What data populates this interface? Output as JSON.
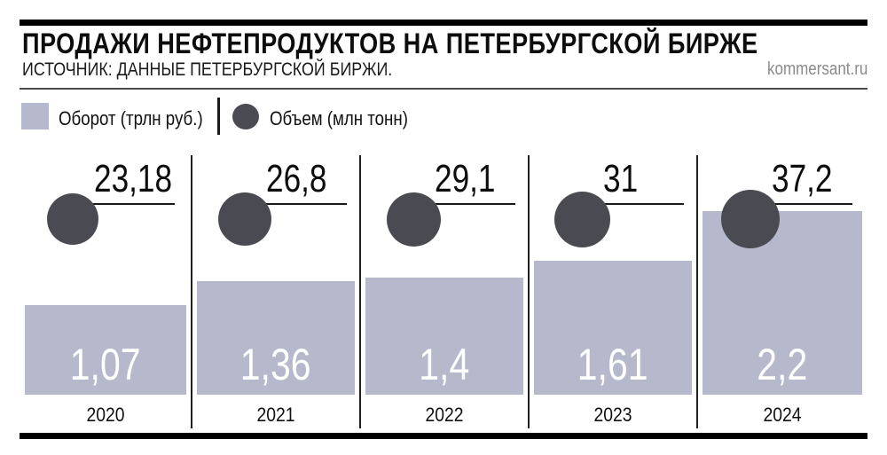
{
  "header": {
    "title": "ПРОДАЖИ НЕФТЕПРОДУКТОВ НА ПЕТЕРБУРГСКОЙ БИРЖЕ",
    "source": "ИСТОЧНИК: ДАННЫЕ ПЕТЕРБУРГСКОЙ БИРЖИ.",
    "site_credit": "kommersant.ru"
  },
  "legend": {
    "turnover": "Оборот (трлн руб.)",
    "volume": "Объем (млн тонн)"
  },
  "colors": {
    "bar": "#b5b9cb",
    "marker": "#4a4a53",
    "accent": "#000000",
    "bar_value_text": "#ffffff",
    "site_credit_text": "#8a8a8a"
  },
  "chart_data": {
    "type": "bar",
    "categories": [
      "2020",
      "2021",
      "2022",
      "2023",
      "2024"
    ],
    "series": [
      {
        "name": "Оборот (трлн руб.)",
        "unit": "трлн руб.",
        "values": [
          1.07,
          1.36,
          1.4,
          1.61,
          2.2
        ],
        "labels": [
          "1,07",
          "1,36",
          "1,4",
          "1,61",
          "2,2"
        ]
      },
      {
        "name": "Объем (млн тонн)",
        "unit": "млн тонн",
        "values": [
          23.18,
          26.8,
          29.1,
          31,
          37.2
        ],
        "labels": [
          "23,18",
          "26,8",
          "29,1",
          "31",
          "37,2"
        ]
      }
    ],
    "title": "ПРОДАЖИ НЕФТЕПРОДУКТОВ НА ПЕТЕРБУРГСКОЙ БИРЖЕ",
    "xlabel": "",
    "ylabel": "",
    "ylim": [
      0,
      2.35
    ],
    "grid": false,
    "legend_position": "top-left"
  }
}
